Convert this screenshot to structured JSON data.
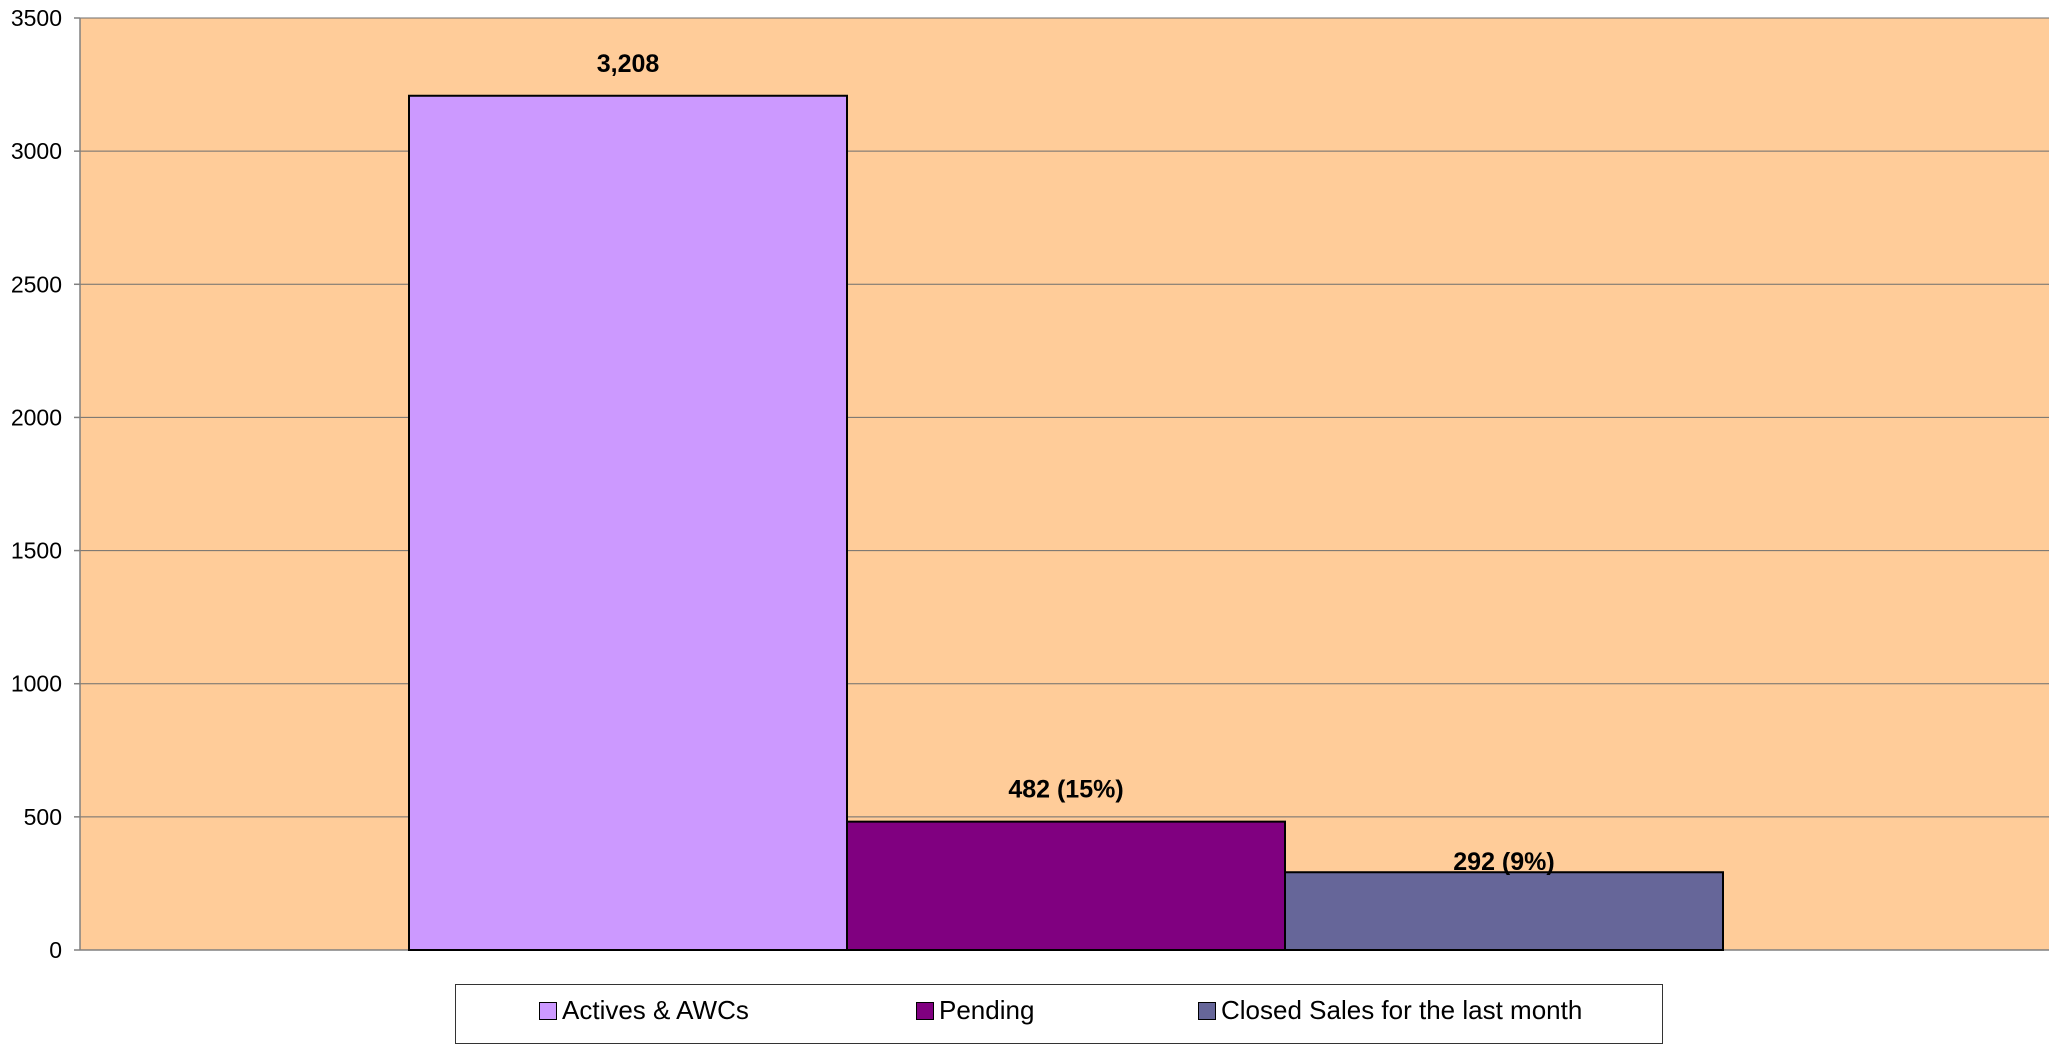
{
  "chart_data": {
    "type": "bar",
    "title": "",
    "xlabel": "",
    "ylabel": "",
    "ylim": [
      0,
      3500
    ],
    "yticks": [
      "0",
      "500",
      "1000",
      "1500",
      "2000",
      "2500",
      "3000",
      "3500"
    ],
    "grid": true,
    "legend_position": "bottom",
    "plot_background": "#FFCC99",
    "series": [
      {
        "name": "Actives & AWCs",
        "value": 3208,
        "label": "3,208",
        "color": "#CC99FF"
      },
      {
        "name": "Pending",
        "value": 482,
        "label": "482 (15%)",
        "color": "#800080"
      },
      {
        "name": "Closed Sales for the last month",
        "value": 292,
        "label": "292 (9%)",
        "color": "#666699"
      }
    ]
  }
}
